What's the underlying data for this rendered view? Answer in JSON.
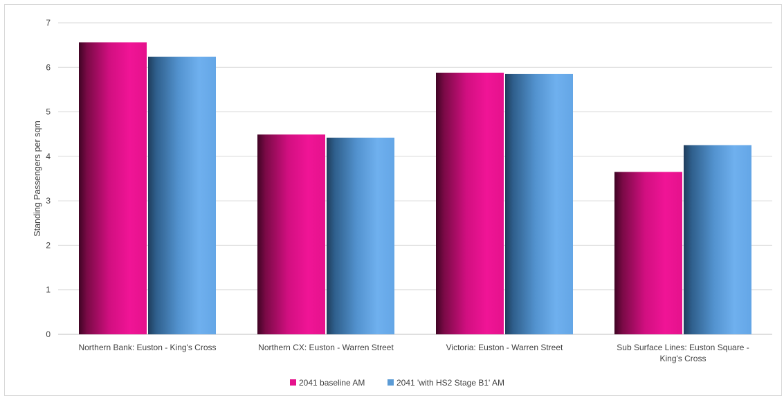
{
  "chart_data": {
    "type": "bar",
    "title": "",
    "xlabel": "",
    "ylabel": "Standing Passengers per sqm",
    "ylim": [
      0,
      7
    ],
    "yticks": [
      0,
      1,
      2,
      3,
      4,
      5,
      6,
      7
    ],
    "grid": true,
    "legend_position": "bottom",
    "categories": [
      [
        "Northern Bank: Euston - King's Cross"
      ],
      [
        "Northern CX: Euston - Warren Street"
      ],
      [
        "Victoria: Euston - Warren Street"
      ],
      [
        "Sub Surface Lines: Euston Square -",
        "King's Cross"
      ]
    ],
    "series": [
      {
        "name": "2041 baseline AM",
        "color": "#e5128c",
        "values": [
          6.56,
          4.49,
          5.88,
          3.65
        ]
      },
      {
        "name": "2041 'with HS2 Stage B1' AM",
        "color": "#5b9bd5",
        "values": [
          6.24,
          4.42,
          5.85,
          4.25
        ]
      }
    ]
  }
}
